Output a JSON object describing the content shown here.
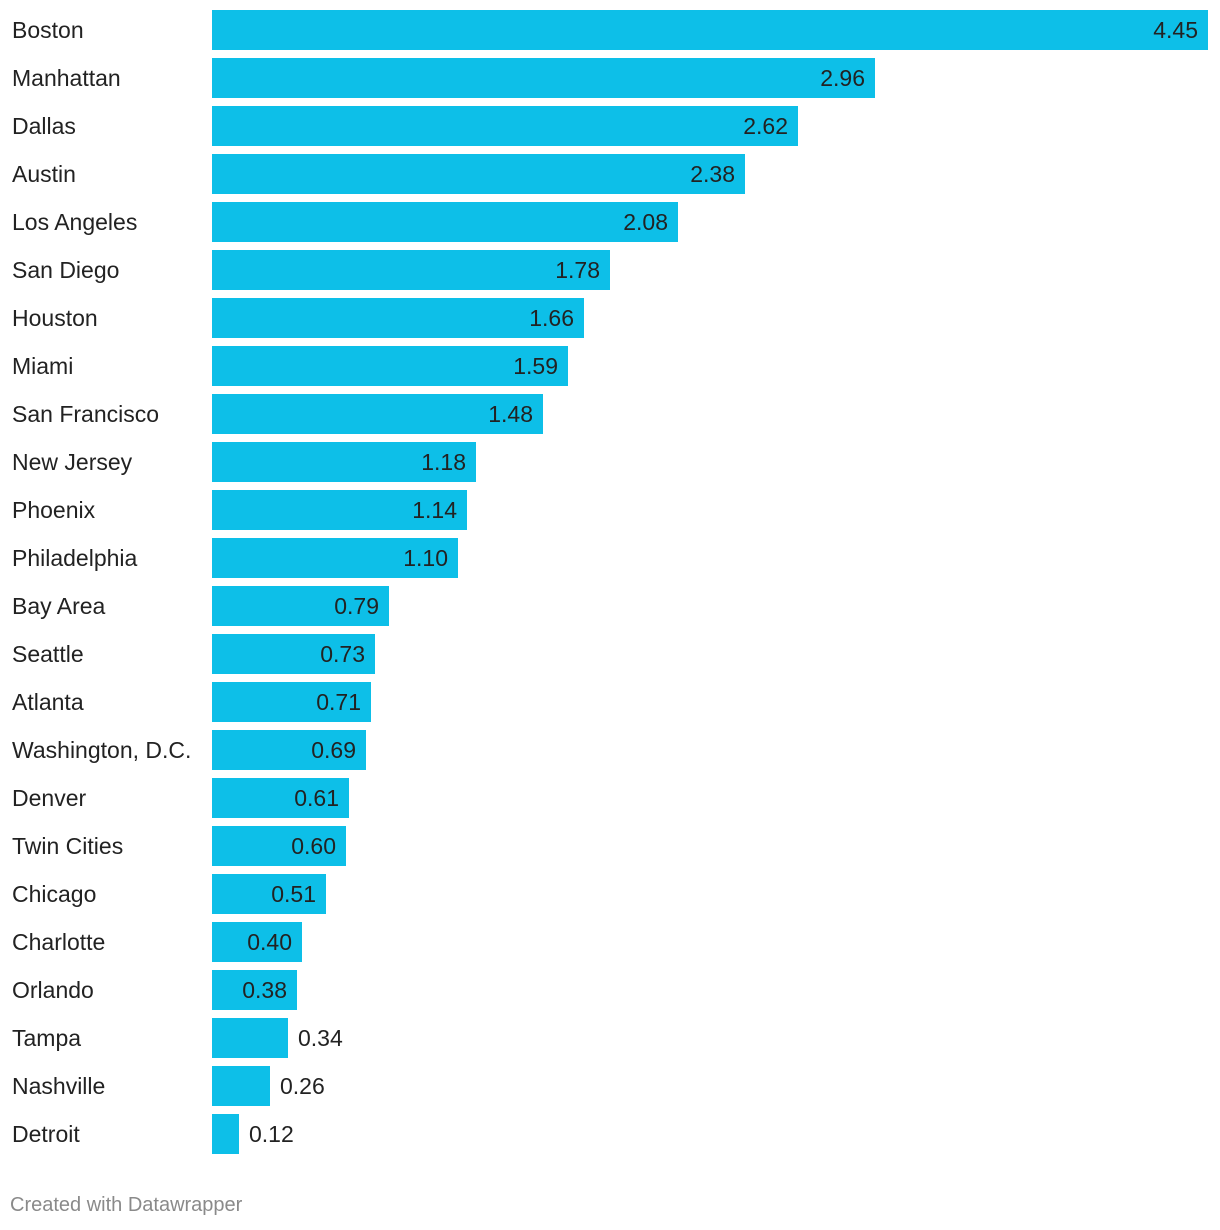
{
  "chart_data": {
    "type": "bar",
    "orientation": "horizontal",
    "bar_color": "#0dbfe8",
    "text_color": "#222222",
    "credit_color": "#8a8a8a",
    "categories": [
      "Boston",
      "Manhattan",
      "Dallas",
      "Austin",
      "Los Angeles",
      "San Diego",
      "Houston",
      "Miami",
      "San Francisco",
      "New Jersey",
      "Phoenix",
      "Philadelphia",
      "Bay Area",
      "Seattle",
      "Atlanta",
      "Washington, D.C.",
      "Denver",
      "Twin Cities",
      "Chicago",
      "Charlotte",
      "Orlando",
      "Tampa",
      "Nashville",
      "Detroit"
    ],
    "values": [
      4.45,
      2.96,
      2.62,
      2.38,
      2.08,
      1.78,
      1.66,
      1.59,
      1.48,
      1.18,
      1.14,
      1.1,
      0.79,
      0.73,
      0.71,
      0.69,
      0.61,
      0.6,
      0.51,
      0.4,
      0.38,
      0.34,
      0.26,
      0.12
    ],
    "value_labels": [
      "4.45",
      "2.96",
      "2.62",
      "2.38",
      "2.08",
      "1.78",
      "1.66",
      "1.59",
      "1.48",
      "1.18",
      "1.14",
      "1.10",
      "0.79",
      "0.73",
      "0.71",
      "0.69",
      "0.61",
      "0.60",
      "0.51",
      "0.40",
      "0.38",
      "0.34",
      "0.26",
      "0.12"
    ],
    "xlim": [
      0,
      4.45
    ],
    "grid": false
  },
  "footer": {
    "credit": "Created with Datawrapper"
  }
}
